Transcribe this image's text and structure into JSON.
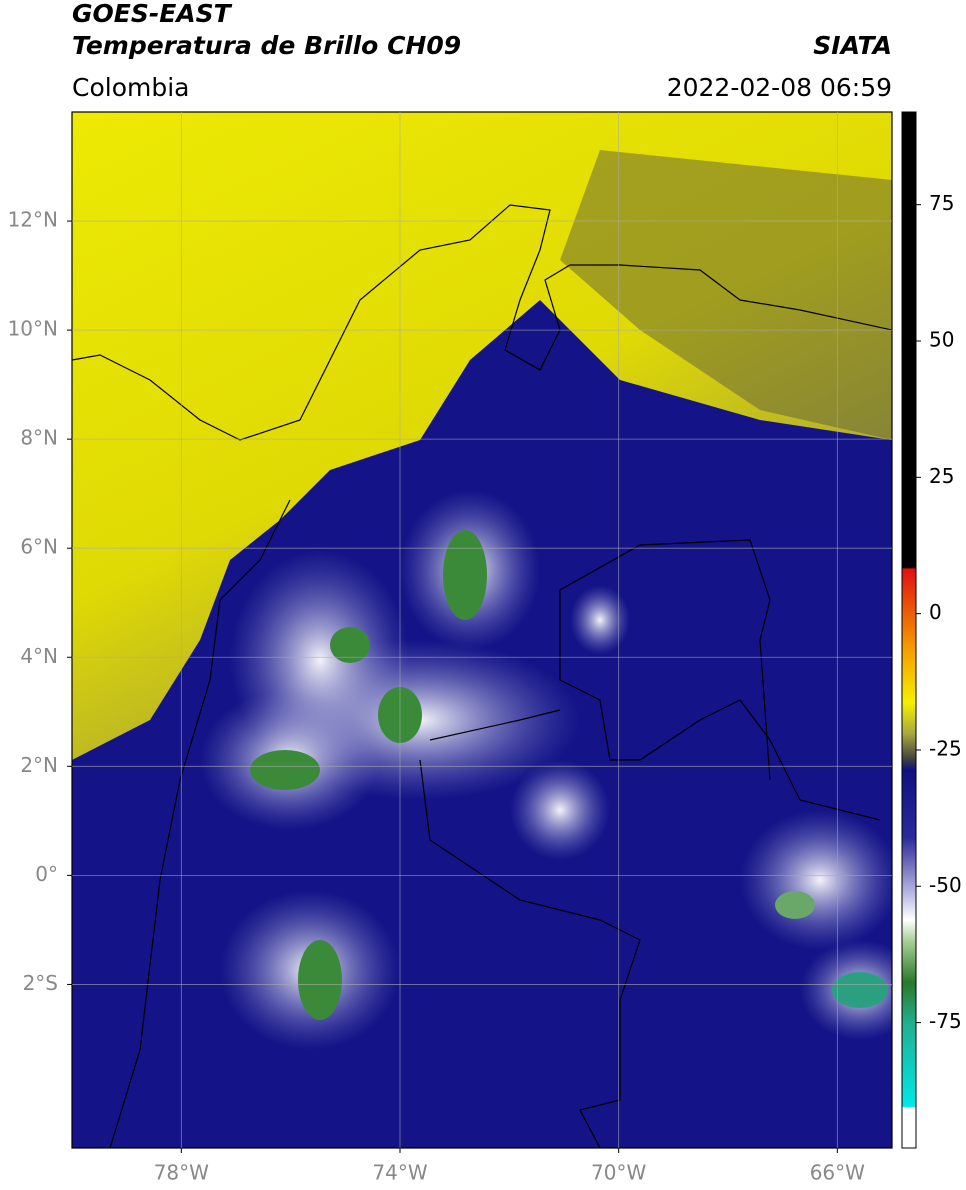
{
  "header": {
    "title": "GOES-EAST",
    "subtitle": "Temperatura de Brillo CH09",
    "source": "SIATA",
    "region": "Colombia",
    "datetime": "2022-02-08 06:59"
  },
  "map": {
    "xlim": [
      -80,
      -65
    ],
    "ylim": [
      -5,
      14
    ],
    "grid": true,
    "xticks": [
      {
        "value": -78,
        "label": "78°W"
      },
      {
        "value": -74,
        "label": "74°W"
      },
      {
        "value": -70,
        "label": "70°W"
      },
      {
        "value": -66,
        "label": "66°W"
      }
    ],
    "yticks": [
      {
        "value": 12,
        "label": "12°N"
      },
      {
        "value": 10,
        "label": "10°N"
      },
      {
        "value": 8,
        "label": "8°N"
      },
      {
        "value": 6,
        "label": "6°N"
      },
      {
        "value": 4,
        "label": "4°N"
      },
      {
        "value": 2,
        "label": "2°N"
      },
      {
        "value": 0,
        "label": "0°"
      },
      {
        "value": -2,
        "label": "2°S"
      }
    ]
  },
  "colorbar": {
    "lim": [
      -98,
      92
    ],
    "ticks": [
      75,
      50,
      25,
      0,
      -25,
      -50,
      -75
    ]
  }
}
